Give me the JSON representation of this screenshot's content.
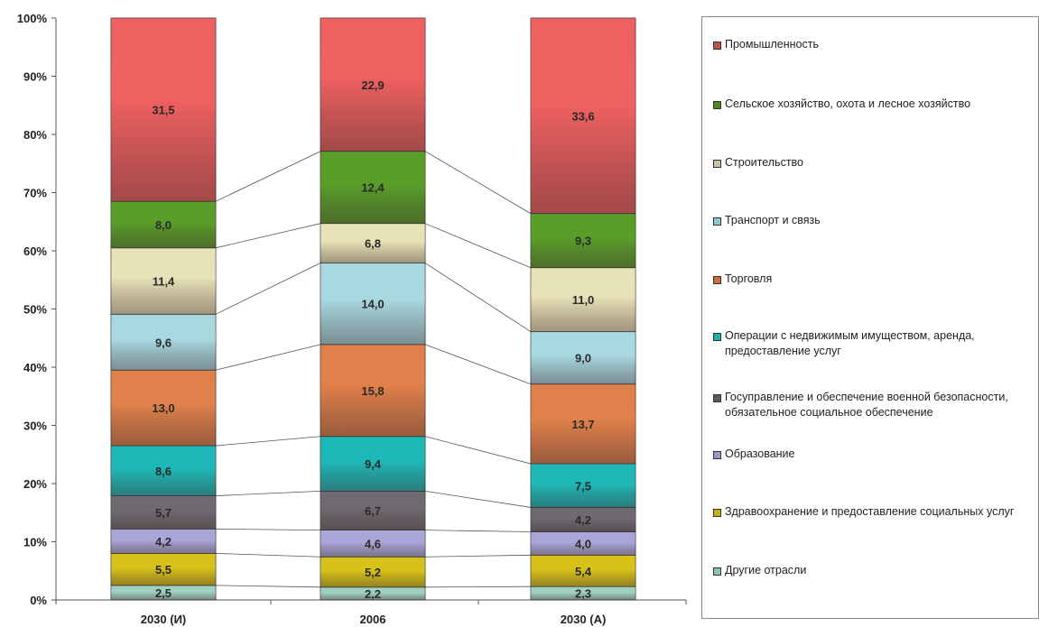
{
  "chart_data": {
    "type": "bar",
    "stacked": "percent",
    "categories": [
      "2030 (И)",
      "2006",
      "2030 (А)"
    ],
    "yticks": [
      "0%",
      "10%",
      "20%",
      "30%",
      "40%",
      "50%",
      "60%",
      "70%",
      "80%",
      "90%",
      "100%"
    ],
    "ylim": [
      0,
      100
    ],
    "legend_position": "right",
    "series": [
      {
        "name": "Другие отрасли",
        "color": "#9fd0c0",
        "values": [
          2.5,
          2.2,
          2.3
        ],
        "labels": [
          "2,5",
          "2,2",
          "2,3"
        ]
      },
      {
        "name": "Здравоохранение и предоставление социальных услуг",
        "color": "#d8c21a",
        "values": [
          5.5,
          5.2,
          5.4
        ],
        "labels": [
          "5,5",
          "5,2",
          "5,4"
        ]
      },
      {
        "name": "Образование",
        "color": "#a9a6d8",
        "values": [
          4.2,
          4.6,
          4.0
        ],
        "labels": [
          "4,2",
          "4,6",
          "4,0"
        ]
      },
      {
        "name": "Госуправление и обеспечение военной безопасности, обязательное социальное обеспечение",
        "color": "#6e6a70",
        "values": [
          5.7,
          6.7,
          4.2
        ],
        "labels": [
          "5,7",
          "6,7",
          "4,2"
        ]
      },
      {
        "name": "Операции с недвижимым имуществом, аренда, предоставление услуг",
        "color": "#1fb8b8",
        "values": [
          8.6,
          9.4,
          7.5
        ],
        "labels": [
          "8,6",
          "9,4",
          "7,5"
        ]
      },
      {
        "name": "Торговля",
        "color": "#e0804a",
        "values": [
          13.0,
          15.8,
          13.7
        ],
        "labels": [
          "13,0",
          "15,8",
          "13,7"
        ]
      },
      {
        "name": "Транспорт и связь",
        "color": "#a8d8e0",
        "values": [
          9.6,
          14.0,
          9.0
        ],
        "labels": [
          "9,6",
          "14,0",
          "9,0"
        ]
      },
      {
        "name": "Строительство",
        "color": "#e8e2b8",
        "values": [
          11.4,
          6.8,
          11.0
        ],
        "labels": [
          "11,4",
          "6,8",
          "11,0"
        ]
      },
      {
        "name": "Сельское хозяйство, охота и лесное хозяйство",
        "color": "#5a9e2a",
        "values": [
          8.0,
          12.4,
          9.3
        ],
        "labels": [
          "8,0",
          "12,4",
          "9,3"
        ]
      },
      {
        "name": "Промышленность",
        "color": "#ef6060",
        "values": [
          31.5,
          22.9,
          33.6
        ],
        "labels": [
          "31,5",
          "22,9",
          "33,6"
        ]
      }
    ]
  },
  "legend": [
    {
      "text": "Промышленность",
      "color": "#c0504d"
    },
    {
      "text": "Сельское хозяйство, охота и лесное хозяйство",
      "color": "#4f8a1e"
    },
    {
      "text": "Строительство",
      "color": "#c8c4a0"
    },
    {
      "text": "Транспорт и связь",
      "color": "#8fc8d0"
    },
    {
      "text": "Торговля",
      "color": "#d06a3a"
    },
    {
      "text": "Операции с недвижимым имуществом, аренда, предоставление  услуг",
      "color": "#1ab0b0"
    },
    {
      "text": "Госуправление и обеспечение военной безопасности, обязательное социальное обеспечение",
      "color": "#5a5860"
    },
    {
      "text": "Образование",
      "color": "#9a98c8"
    },
    {
      "text": "Здравоохранение и предоставление социальных услуг",
      "color": "#c8b010"
    },
    {
      "text": "Другие отрасли",
      "color": "#90c0b0"
    }
  ]
}
